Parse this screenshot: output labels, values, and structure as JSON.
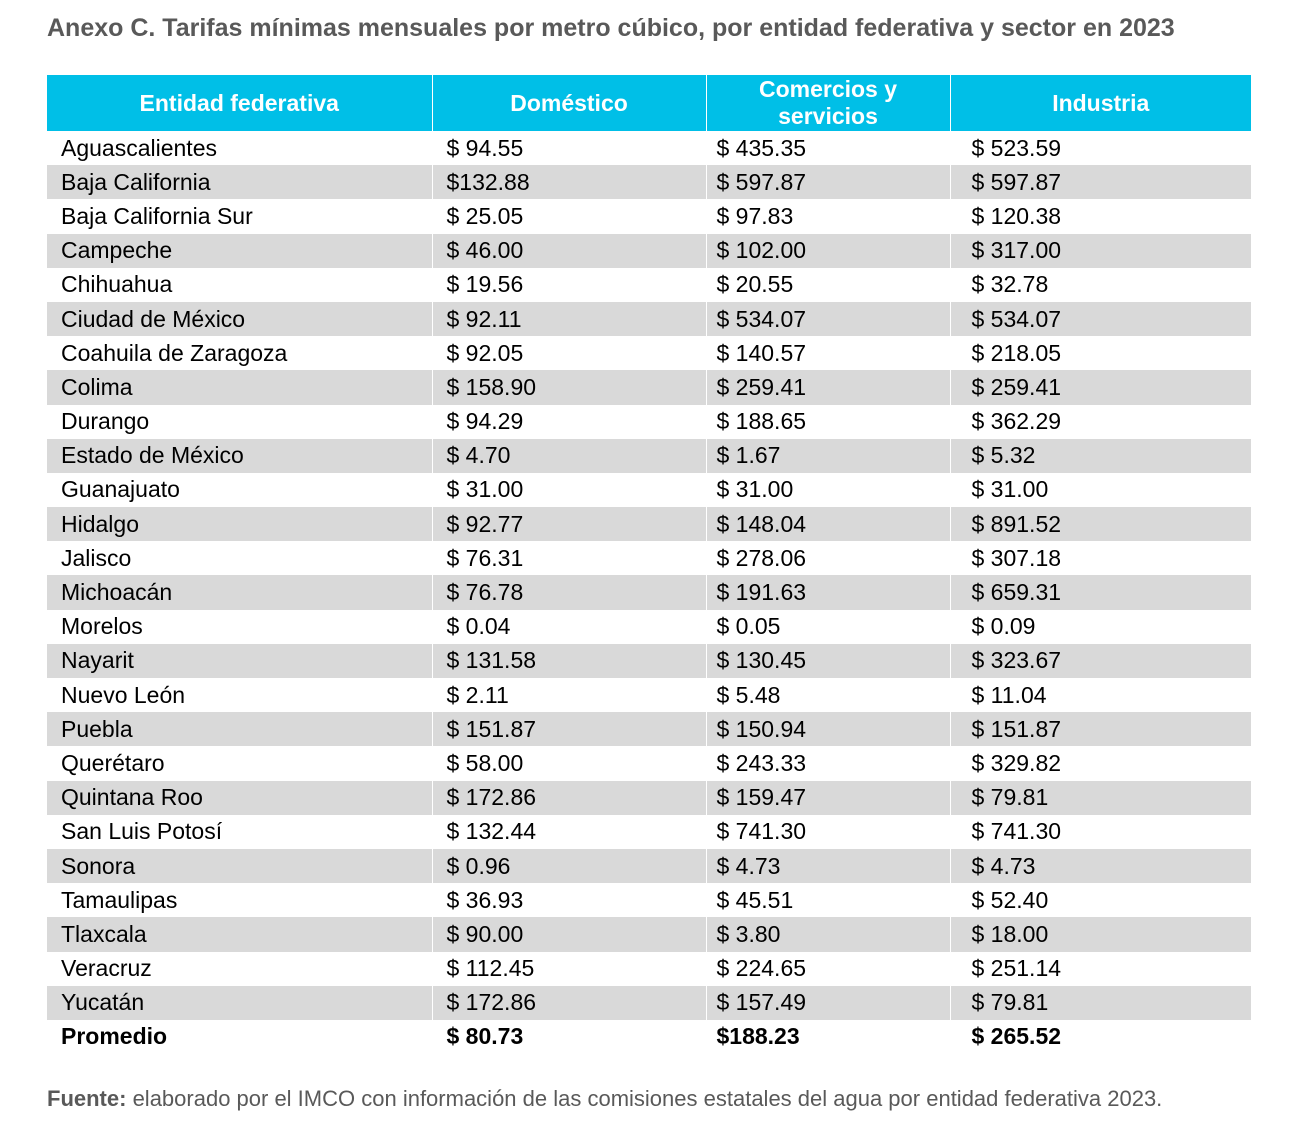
{
  "title": "Anexo C. Tarifas mínimas mensuales por metro cúbico, por entidad federativa y sector en 2023",
  "table": {
    "headers": [
      "Entidad federativa",
      "Doméstico",
      "Comercios y servicios",
      "Industria"
    ],
    "rows": [
      {
        "entidad": "Aguascalientes",
        "domestico": "$ 94.55",
        "comercios": "$ 435.35",
        "industria": "$ 523.59"
      },
      {
        "entidad": "Baja California",
        "domestico": "$132.88",
        "comercios": "$ 597.87",
        "industria": "$ 597.87"
      },
      {
        "entidad": "Baja California Sur",
        "domestico": "$ 25.05",
        "comercios": "$ 97.83",
        "industria": "$ 120.38"
      },
      {
        "entidad": "Campeche",
        "domestico": "$ 46.00",
        "comercios": "$ 102.00",
        "industria": "$ 317.00"
      },
      {
        "entidad": "Chihuahua",
        "domestico": "$ 19.56",
        "comercios": "$ 20.55",
        "industria": "$ 32.78"
      },
      {
        "entidad": "Ciudad de México",
        "domestico": "$ 92.11",
        "comercios": "$ 534.07",
        "industria": "$ 534.07"
      },
      {
        "entidad": "Coahuila de Zaragoza",
        "domestico": "$ 92.05",
        "comercios": "$ 140.57",
        "industria": "$ 218.05"
      },
      {
        "entidad": "Colima",
        "domestico": "$ 158.90",
        "comercios": "$ 259.41",
        "industria": "$ 259.41"
      },
      {
        "entidad": "Durango",
        "domestico": "$ 94.29",
        "comercios": "$ 188.65",
        "industria": "$ 362.29"
      },
      {
        "entidad": "Estado de México",
        "domestico": "$ 4.70",
        "comercios": "$ 1.67",
        "industria": "$ 5.32"
      },
      {
        "entidad": "Guanajuato",
        "domestico": "$ 31.00",
        "comercios": "$ 31.00",
        "industria": "$ 31.00"
      },
      {
        "entidad": "Hidalgo",
        "domestico": "$ 92.77",
        "comercios": "$ 148.04",
        "industria": "$ 891.52"
      },
      {
        "entidad": "Jalisco",
        "domestico": "$ 76.31",
        "comercios": "$ 278.06",
        "industria": "$ 307.18"
      },
      {
        "entidad": "Michoacán",
        "domestico": "$ 76.78",
        "comercios": "$ 191.63",
        "industria": "$ 659.31"
      },
      {
        "entidad": "Morelos",
        "domestico": "$ 0.04",
        "comercios": "$ 0.05",
        "industria": "$ 0.09"
      },
      {
        "entidad": "Nayarit",
        "domestico": "$ 131.58",
        "comercios": "$ 130.45",
        "industria": "$ 323.67"
      },
      {
        "entidad": "Nuevo León",
        "domestico": "$ 2.11",
        "comercios": "$ 5.48",
        "industria": "$ 11.04"
      },
      {
        "entidad": "Puebla",
        "domestico": "$ 151.87",
        "comercios": "$ 150.94",
        "industria": "$ 151.87"
      },
      {
        "entidad": "Querétaro",
        "domestico": "$ 58.00",
        "comercios": "$ 243.33",
        "industria": "$ 329.82"
      },
      {
        "entidad": "Quintana Roo",
        "domestico": "$ 172.86",
        "comercios": "$ 159.47",
        "industria": "$ 79.81"
      },
      {
        "entidad": "San Luis Potosí",
        "domestico": "$ 132.44",
        "comercios": "$ 741.30",
        "industria": "$ 741.30"
      },
      {
        "entidad": "Sonora",
        "domestico": "$ 0.96",
        "comercios": "$ 4.73",
        "industria": "$ 4.73"
      },
      {
        "entidad": "Tamaulipas",
        "domestico": "$ 36.93",
        "comercios": "$ 45.51",
        "industria": "$ 52.40"
      },
      {
        "entidad": "Tlaxcala",
        "domestico": "$ 90.00",
        "comercios": "$ 3.80",
        "industria": "$ 18.00"
      },
      {
        "entidad": "Veracruz",
        "domestico": "$ 112.45",
        "comercios": "$ 224.65",
        "industria": "$ 251.14"
      },
      {
        "entidad": "Yucatán",
        "domestico": "$ 172.86",
        "comercios": "$ 157.49",
        "industria": "$ 79.81"
      }
    ],
    "total": {
      "entidad": "Promedio",
      "domestico": "$ 80.73",
      "comercios": "$188.23",
      "industria": "$ 265.52"
    }
  },
  "source": {
    "label": "Fuente:",
    "text": " elaborado por el IMCO con información de las comisiones estatales del agua por entidad federativa 2023."
  },
  "colors": {
    "header_bg": "#00BFE7",
    "stripe_bg": "#D9D9D9",
    "title_text": "#595959"
  }
}
